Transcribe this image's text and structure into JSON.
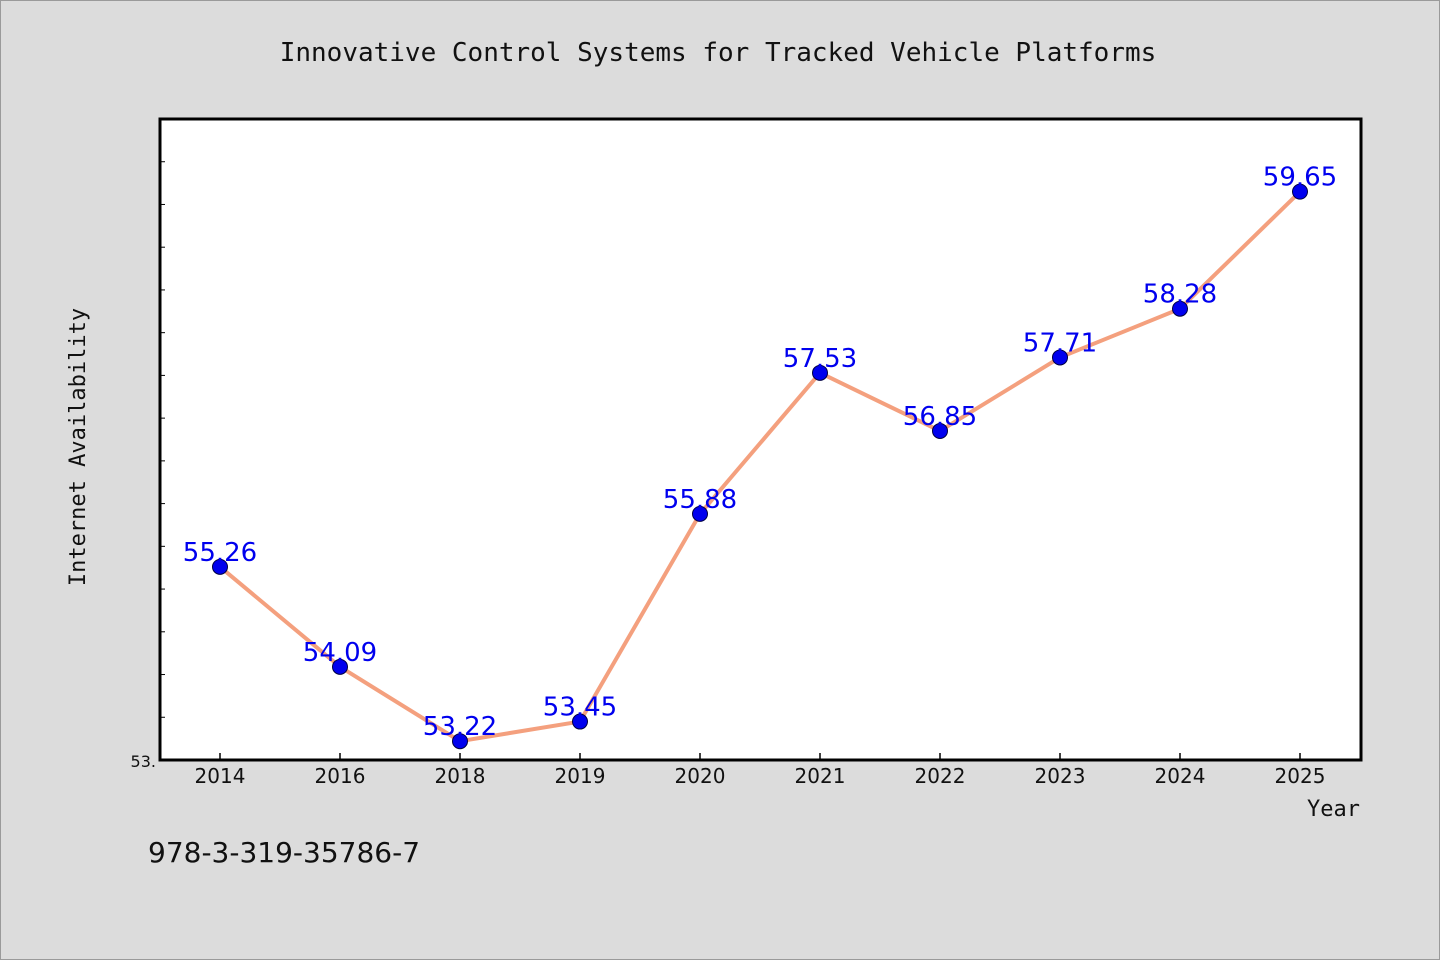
{
  "chart_data": {
    "type": "line",
    "title": "Innovative Control Systems for Tracked Vehicle Platforms",
    "xlabel": "Year",
    "ylabel": "Internet Availability",
    "categories": [
      "2014",
      "2016",
      "2018",
      "2019",
      "2020",
      "2021",
      "2022",
      "2023",
      "2024",
      "2025"
    ],
    "series": [
      {
        "values": [
          55.26,
          54.09,
          53.22,
          53.45,
          55.88,
          57.53,
          56.85,
          57.71,
          58.28,
          59.65
        ]
      }
    ],
    "data_labels": [
      "55.26",
      "54.09",
      "53.22",
      "53.45",
      "55.88",
      "57.53",
      "56.85",
      "57.71",
      "58.28",
      "59.65"
    ],
    "y_tick_label": "53.",
    "ylim": [
      53.0,
      60.5
    ],
    "grid": false,
    "colors": {
      "line": "#f4a07e",
      "marker": "#0000ee",
      "label": "#0000ee",
      "background": "#dcdcdc",
      "plot_background": "#ffffff"
    }
  },
  "footer": {
    "isbn": "978-3-319-35786-7"
  }
}
